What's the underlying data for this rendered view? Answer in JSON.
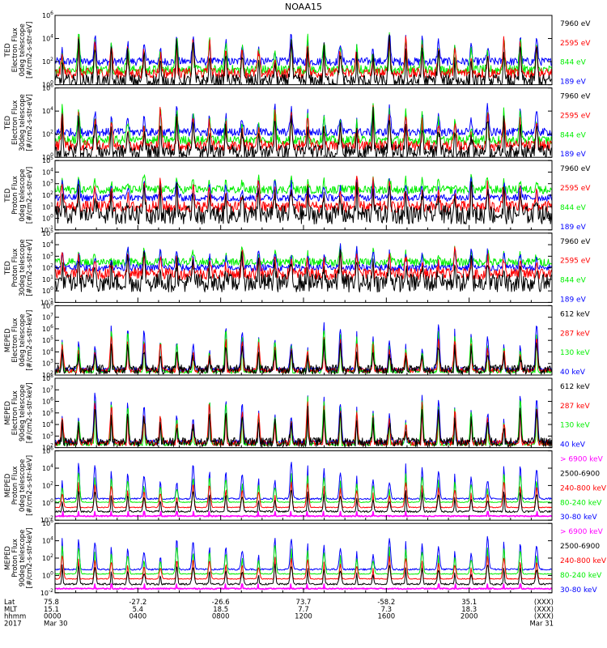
{
  "figure": {
    "title": "NOAA15",
    "colors": {
      "blue": "#0000ff",
      "red": "#ff0000",
      "green": "#00ee00",
      "black": "#000000",
      "magenta": "#ff00ff"
    },
    "footer": {
      "row_labels": [
        "Lat",
        "MLT",
        "hhmm",
        "2017"
      ],
      "columns": [
        {
          "lat": "75.8",
          "mlt": "15.1",
          "hhmm": "0000",
          "date": "Mar 30"
        },
        {
          "lat": "-27.2",
          "mlt": "5.4",
          "hhmm": "0400",
          "date": ""
        },
        {
          "lat": "-26.6",
          "mlt": "18.5",
          "hhmm": "0800",
          "date": ""
        },
        {
          "lat": "73.7",
          "mlt": "7.7",
          "hhmm": "1200",
          "date": ""
        },
        {
          "lat": "-58.2",
          "mlt": "7.3",
          "hhmm": "1600",
          "date": ""
        },
        {
          "lat": "35.1",
          "mlt": "18.3",
          "hhmm": "2000",
          "date": ""
        },
        {
          "lat": "(XXX)",
          "mlt": "(XXX)",
          "hhmm": "(XXX)",
          "date": "Mar 31"
        }
      ]
    }
  },
  "chart_data": [
    {
      "type": "line",
      "ylabel": [
        "TED",
        "Electron Flux",
        "0deg telescope",
        "[#/cm2-s-str-eV]"
      ],
      "ylim": [
        1,
        1000000
      ],
      "log_y": true,
      "ytick_labels": [
        "10^0",
        "10^2",
        "10^4",
        "10^6"
      ],
      "xlim": [
        0,
        24
      ],
      "legend": [
        "7960 eV",
        "2595 eV",
        "844 eV",
        "189 eV"
      ],
      "legend_colors": [
        "black",
        "red",
        "green",
        "blue"
      ],
      "series": [
        {
          "name": "189 eV",
          "color": "blue",
          "base": 100,
          "peak": 30000,
          "noise": 0.35
        },
        {
          "name": "844 eV",
          "color": "green",
          "base": 20,
          "peak": 30000,
          "noise": 0.4
        },
        {
          "name": "2595 eV",
          "color": "red",
          "base": 10,
          "peak": 15000,
          "noise": 0.45
        },
        {
          "name": "7960 eV",
          "color": "black",
          "base": 2,
          "peak": 8000,
          "noise": 0.6
        }
      ]
    },
    {
      "type": "line",
      "ylabel": [
        "TED",
        "Electron Flux",
        "30deg telescope",
        "[#/cm2-s-str-eV]"
      ],
      "ylim": [
        1,
        1000000
      ],
      "log_y": true,
      "ytick_labels": [
        "10^0",
        "10^2",
        "10^4",
        "10^6"
      ],
      "xlim": [
        0,
        24
      ],
      "legend": [
        "7960 eV",
        "2595 eV",
        "844 eV",
        "189 eV"
      ],
      "legend_colors": [
        "black",
        "red",
        "green",
        "blue"
      ],
      "series": [
        {
          "name": "189 eV",
          "color": "blue",
          "base": 150,
          "peak": 30000,
          "noise": 0.35
        },
        {
          "name": "844 eV",
          "color": "green",
          "base": 30,
          "peak": 25000,
          "noise": 0.4
        },
        {
          "name": "2595 eV",
          "color": "red",
          "base": 10,
          "peak": 12000,
          "noise": 0.45
        },
        {
          "name": "7960 eV",
          "color": "black",
          "base": 3,
          "peak": 6000,
          "noise": 0.6
        }
      ]
    },
    {
      "type": "line",
      "ylabel": [
        "TED",
        "Proton Flux",
        "0deg telescope",
        "[#/cm2-s-str-eV]"
      ],
      "ylim": [
        0.1,
        100000
      ],
      "log_y": true,
      "ytick_labels": [
        "10^-1",
        "10^0",
        "10^1",
        "10^2",
        "10^3",
        "10^4",
        "10^5"
      ],
      "xlim": [
        0,
        24
      ],
      "legend": [
        "7960 eV",
        "2595 eV",
        "844 eV",
        "189 eV"
      ],
      "legend_colors": [
        "black",
        "red",
        "green",
        "blue"
      ],
      "series": [
        {
          "name": "844 eV",
          "color": "green",
          "base": 300,
          "peak": 5000,
          "noise": 0.35
        },
        {
          "name": "189 eV",
          "color": "blue",
          "base": 60,
          "peak": 3000,
          "noise": 0.3
        },
        {
          "name": "2595 eV",
          "color": "red",
          "base": 10,
          "peak": 2000,
          "noise": 0.5
        },
        {
          "name": "7960 eV",
          "color": "black",
          "base": 2,
          "peak": 1000,
          "noise": 0.8
        }
      ]
    },
    {
      "type": "line",
      "ylabel": [
        "TED",
        "Proton Flux",
        "30deg telescope",
        "[#/cm2-s-str-eV]"
      ],
      "ylim": [
        0.1,
        100000
      ],
      "log_y": true,
      "ytick_labels": [
        "10^-1",
        "10^0",
        "10^1",
        "10^2",
        "10^3",
        "10^4",
        "10^5"
      ],
      "xlim": [
        0,
        24
      ],
      "legend": [
        "7960 eV",
        "2595 eV",
        "844 eV",
        "189 eV"
      ],
      "legend_colors": [
        "black",
        "red",
        "green",
        "blue"
      ],
      "series": [
        {
          "name": "844 eV",
          "color": "green",
          "base": 300,
          "peak": 5000,
          "noise": 0.35
        },
        {
          "name": "189 eV",
          "color": "blue",
          "base": 100,
          "peak": 8000,
          "noise": 0.3
        },
        {
          "name": "2595 eV",
          "color": "red",
          "base": 30,
          "peak": 3000,
          "noise": 0.5
        },
        {
          "name": "7960 eV",
          "color": "black",
          "base": 5,
          "peak": 1500,
          "noise": 0.8
        }
      ]
    },
    {
      "type": "line",
      "ylabel": [
        "MEPED",
        "Electron Flux",
        "0deg telescope",
        "[#/cm2-s-str-keV]"
      ],
      "ylim": [
        100,
        100000000
      ],
      "log_y": true,
      "ytick_labels": [
        "10^2",
        "10^3",
        "10^4",
        "10^5",
        "10^6",
        "10^7",
        "10^8"
      ],
      "xlim": [
        0,
        24
      ],
      "legend": [
        "612 keV",
        "287 keV",
        "130 keV",
        "40 keV"
      ],
      "legend_colors": [
        "black",
        "red",
        "green",
        "blue"
      ],
      "series": [
        {
          "name": "40 keV",
          "color": "blue",
          "base": 300,
          "peak": 3000000,
          "noise": 0.2
        },
        {
          "name": "130 keV",
          "color": "green",
          "base": 200,
          "peak": 1000000,
          "noise": 0.15
        },
        {
          "name": "287 keV",
          "color": "red",
          "base": 250,
          "peak": 300000,
          "noise": 0.2
        },
        {
          "name": "612 keV",
          "color": "black",
          "base": 300,
          "peak": 50000,
          "noise": 0.4
        }
      ]
    },
    {
      "type": "line",
      "ylabel": [
        "MEPED",
        "Electron Flux",
        "90deg telescope",
        "[#/cm2-s-str-keV]"
      ],
      "ylim": [
        100,
        100000000
      ],
      "log_y": true,
      "ytick_labels": [
        "10^2",
        "10^3",
        "10^4",
        "10^5",
        "10^6",
        "10^7",
        "10^8"
      ],
      "xlim": [
        0,
        24
      ],
      "legend": [
        "612 keV",
        "287 keV",
        "130 keV",
        "40 keV"
      ],
      "legend_colors": [
        "black",
        "red",
        "green",
        "blue"
      ],
      "series": [
        {
          "name": "40 keV",
          "color": "blue",
          "base": 300,
          "peak": 5000000,
          "noise": 0.2
        },
        {
          "name": "130 keV",
          "color": "green",
          "base": 200,
          "peak": 2000000,
          "noise": 0.15
        },
        {
          "name": "287 keV",
          "color": "red",
          "base": 250,
          "peak": 800000,
          "noise": 0.25
        },
        {
          "name": "612 keV",
          "color": "black",
          "base": 300,
          "peak": 200000,
          "noise": 0.4
        }
      ]
    },
    {
      "type": "line",
      "ylabel": [
        "MEPED",
        "Proton Flux",
        "0deg telescope",
        "[#/cm2-s-str-keV]"
      ],
      "ylim": [
        0.01,
        1000000
      ],
      "log_y": true,
      "ytick_labels": [
        "10^-2",
        "10^0",
        "10^2",
        "10^4",
        "10^6"
      ],
      "xlim": [
        0,
        24
      ],
      "legend": [
        "> 6900 keV",
        "2500-6900",
        "240-800 keV",
        "80-240 keV",
        "30-80 keV"
      ],
      "legend_colors": [
        "magenta",
        "black",
        "red",
        "green",
        "blue"
      ],
      "series": [
        {
          "name": "30-80 keV",
          "color": "blue",
          "base": 3,
          "peak": 50000,
          "noise": 0.1
        },
        {
          "name": "80-240 keV",
          "color": "green",
          "base": 1.2,
          "peak": 3000,
          "noise": 0.05
        },
        {
          "name": "240-800 keV",
          "color": "red",
          "base": 0.3,
          "peak": 300,
          "noise": 0.05
        },
        {
          "name": "2500-6900",
          "color": "black",
          "base": 0.1,
          "peak": 30,
          "noise": 0.1
        },
        {
          "name": "> 6900 keV",
          "color": "magenta",
          "base": 0.03,
          "peak": 0.1,
          "noise": 0.3
        }
      ]
    },
    {
      "type": "line",
      "ylabel": [
        "MEPED",
        "Proton Flux",
        "90deg telescope",
        "[#/cm2-s-str-keV]"
      ],
      "ylim": [
        0.01,
        1000000
      ],
      "log_y": true,
      "ytick_labels": [
        "10^-2",
        "10^0",
        "10^2",
        "10^4",
        "10^6"
      ],
      "xlim": [
        0,
        24
      ],
      "legend": [
        "> 6900 keV",
        "2500-6900",
        "240-800 keV",
        "80-240 keV",
        "30-80 keV"
      ],
      "legend_colors": [
        "magenta",
        "black",
        "red",
        "green",
        "blue"
      ],
      "series": [
        {
          "name": "30-80 keV",
          "color": "blue",
          "base": 5,
          "peak": 30000,
          "noise": 0.1
        },
        {
          "name": "80-240 keV",
          "color": "green",
          "base": 1.5,
          "peak": 3000,
          "noise": 0.05
        },
        {
          "name": "240-800 keV",
          "color": "red",
          "base": 0.4,
          "peak": 200,
          "noise": 0.05
        },
        {
          "name": "2500-6900",
          "color": "black",
          "base": 0.1,
          "peak": 20,
          "noise": 0.1
        },
        {
          "name": "> 6900 keV",
          "color": "magenta",
          "base": 0.03,
          "peak": 0.1,
          "noise": 0.3
        }
      ]
    }
  ]
}
